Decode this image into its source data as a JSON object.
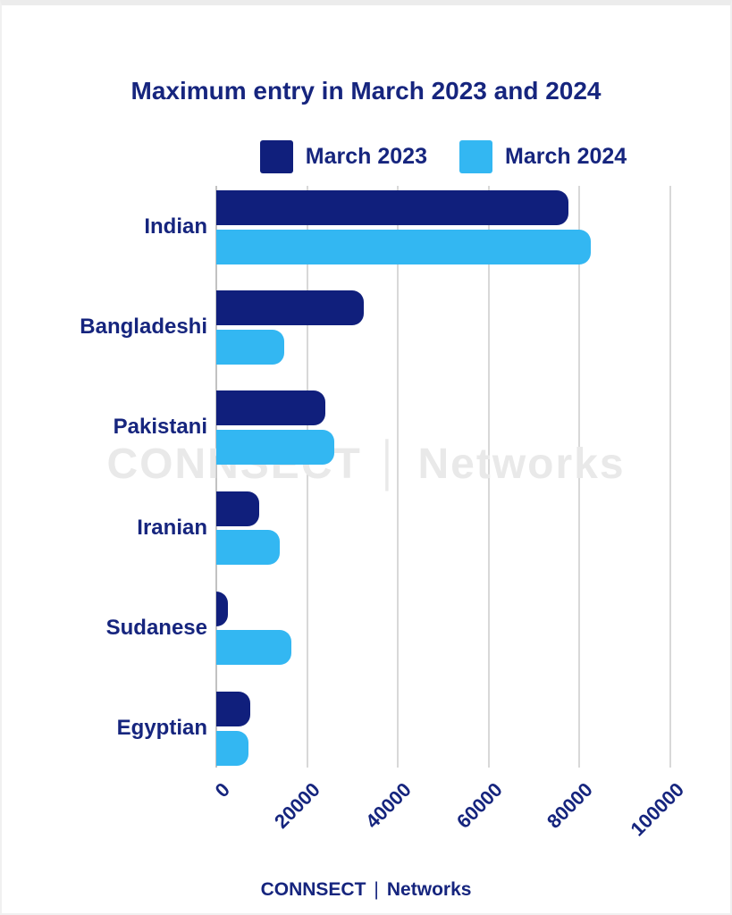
{
  "page": {
    "title": "Maximum entry in March 2023 and 2024",
    "watermark": "CONNSECT │ Networks",
    "footer": {
      "brand": "CONNSECT",
      "separator": "|",
      "name": "Networks"
    }
  },
  "chart_data": {
    "type": "bar",
    "orientation": "horizontal",
    "title": "Maximum entry in March 2023 and 2024",
    "categories": [
      "Indian",
      "Bangladeshi",
      "Pakistani",
      "Iranian",
      "Sudanese",
      "Egyptian"
    ],
    "series": [
      {
        "name": "March 2023",
        "color": "#101F7C",
        "values": [
          77500,
          32500,
          24000,
          9500,
          2500,
          7500
        ]
      },
      {
        "name": "March 2024",
        "color": "#33B7F2",
        "values": [
          82500,
          15000,
          26000,
          14000,
          16500,
          7000
        ]
      }
    ],
    "x_ticks": [
      0,
      20000,
      40000,
      60000,
      80000,
      100000
    ],
    "xlim": [
      0,
      100000
    ],
    "grid": "vertical",
    "legend_position": "top-center",
    "tick_label_rotation": 45
  },
  "colors": {
    "bar_2023": "#101F7C",
    "bar_2024": "#33B7F2",
    "text": "#16257E",
    "gridline": "#D8D8D8",
    "watermark": "#E9E9E9",
    "page_border": "#ECECEC",
    "background": "#FFFFFF"
  }
}
